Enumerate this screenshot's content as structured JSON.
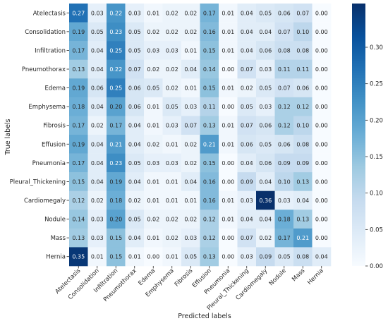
{
  "chart_data": {
    "type": "heatmap",
    "xlabel": "Predicted labels",
    "ylabel": "True labels",
    "x_categories": [
      "Atelectasis",
      "Consolidation",
      "Infiltration",
      "Pneumothorax",
      "Edema",
      "Emphysema",
      "Fibrosis",
      "Effusion",
      "Pneumonia",
      "Pleural_Thickening",
      "Cardiomegaly",
      "Nodule",
      "Mass",
      "Hernia"
    ],
    "y_categories": [
      "Atelectasis",
      "Consolidation",
      "Infiltration",
      "Pneumothorax",
      "Edema",
      "Emphysema",
      "Fibrosis",
      "Effusion",
      "Pneumonia",
      "Pleural_Thickening",
      "Cardiomegaly",
      "Nodule",
      "Mass",
      "Hernia"
    ],
    "values": [
      [
        0.27,
        0.03,
        0.22,
        0.03,
        0.01,
        0.02,
        0.02,
        0.17,
        0.01,
        0.04,
        0.05,
        0.06,
        0.07,
        0.0
      ],
      [
        0.19,
        0.05,
        0.23,
        0.05,
        0.02,
        0.02,
        0.02,
        0.16,
        0.01,
        0.04,
        0.04,
        0.07,
        0.1,
        0.0
      ],
      [
        0.17,
        0.04,
        0.25,
        0.05,
        0.03,
        0.03,
        0.01,
        0.15,
        0.01,
        0.04,
        0.06,
        0.08,
        0.08,
        0.0
      ],
      [
        0.13,
        0.04,
        0.22,
        0.07,
        0.02,
        0.02,
        0.04,
        0.14,
        0.0,
        0.07,
        0.03,
        0.11,
        0.11,
        0.0
      ],
      [
        0.19,
        0.06,
        0.25,
        0.06,
        0.05,
        0.02,
        0.01,
        0.15,
        0.01,
        0.02,
        0.05,
        0.07,
        0.06,
        0.0
      ],
      [
        0.18,
        0.04,
        0.2,
        0.06,
        0.01,
        0.05,
        0.03,
        0.11,
        0.0,
        0.05,
        0.03,
        0.12,
        0.12,
        0.0
      ],
      [
        0.17,
        0.02,
        0.17,
        0.04,
        0.01,
        0.03,
        0.07,
        0.13,
        0.01,
        0.07,
        0.06,
        0.12,
        0.1,
        0.0
      ],
      [
        0.19,
        0.04,
        0.21,
        0.04,
        0.02,
        0.01,
        0.02,
        0.21,
        0.01,
        0.06,
        0.05,
        0.06,
        0.08,
        0.0
      ],
      [
        0.17,
        0.04,
        0.23,
        0.05,
        0.03,
        0.03,
        0.02,
        0.15,
        0.0,
        0.04,
        0.06,
        0.09,
        0.09,
        0.0
      ],
      [
        0.15,
        0.04,
        0.19,
        0.04,
        0.01,
        0.01,
        0.04,
        0.16,
        0.0,
        0.09,
        0.04,
        0.1,
        0.13,
        0.0
      ],
      [
        0.12,
        0.02,
        0.18,
        0.02,
        0.01,
        0.01,
        0.01,
        0.16,
        0.01,
        0.03,
        0.36,
        0.03,
        0.04,
        0.0
      ],
      [
        0.14,
        0.03,
        0.2,
        0.05,
        0.02,
        0.02,
        0.02,
        0.12,
        0.01,
        0.04,
        0.04,
        0.18,
        0.13,
        0.0
      ],
      [
        0.13,
        0.03,
        0.15,
        0.04,
        0.01,
        0.02,
        0.03,
        0.12,
        0.0,
        0.07,
        0.02,
        0.17,
        0.21,
        0.0
      ],
      [
        0.35,
        0.01,
        0.15,
        0.01,
        0.0,
        0.01,
        0.05,
        0.13,
        0.0,
        0.03,
        0.09,
        0.05,
        0.08,
        0.04
      ]
    ],
    "colormap": "Blues",
    "vmin": 0.0,
    "vmax": 0.36,
    "colorbar_ticks": [
      0.0,
      0.05,
      0.1,
      0.15,
      0.2,
      0.25,
      0.3
    ],
    "cell_format": "0.00",
    "colors": {
      "low": "#f7fbff",
      "high": "#08306b",
      "text_dark": "#262626",
      "text_light": "#ffffff"
    }
  }
}
